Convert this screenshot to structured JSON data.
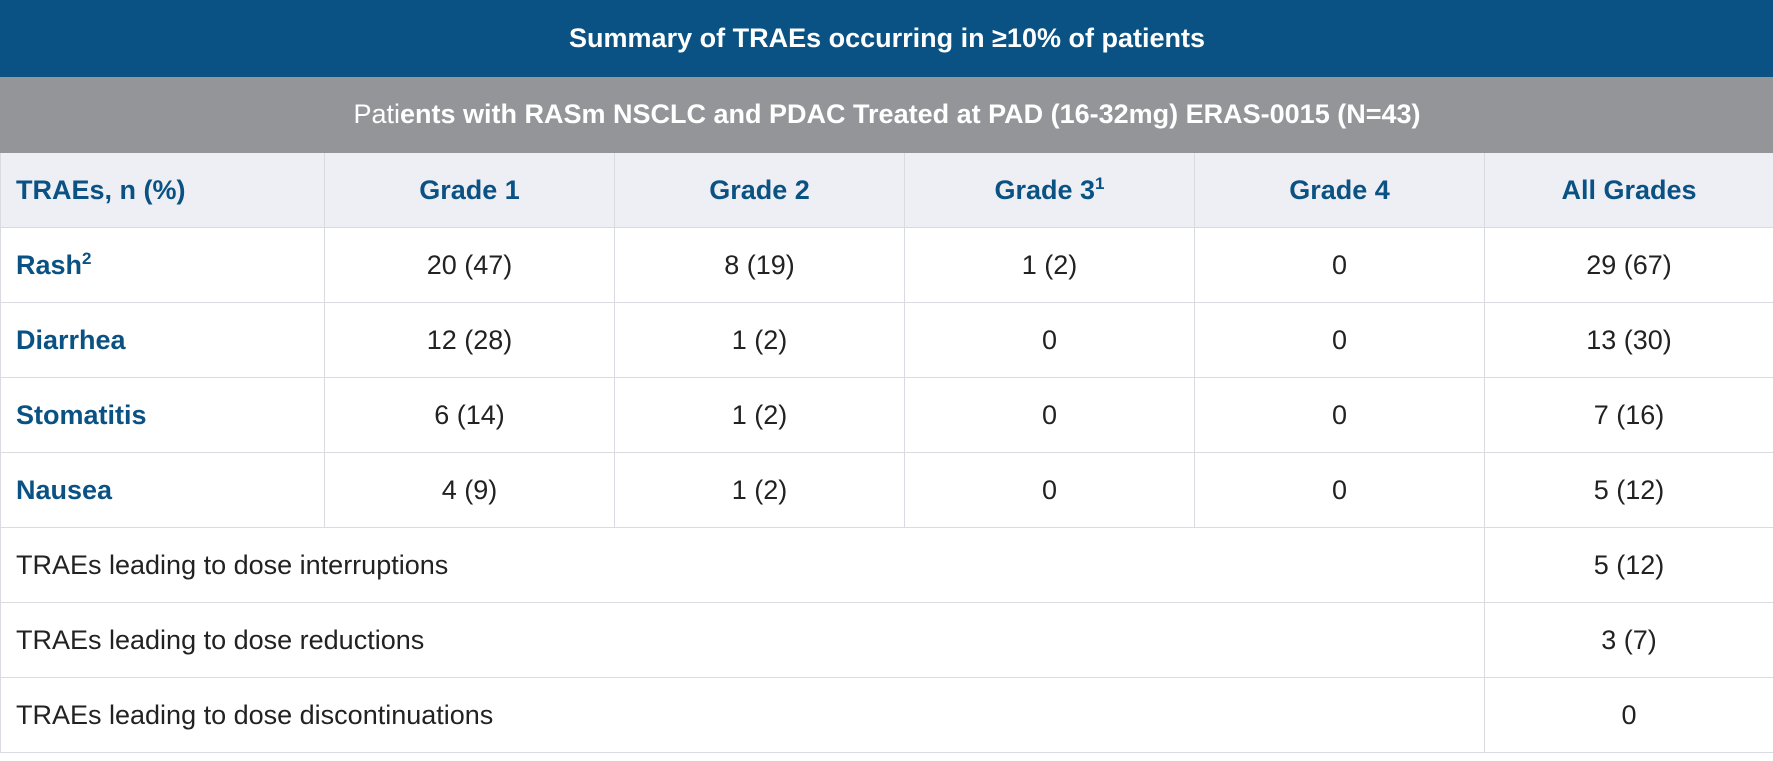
{
  "table": {
    "title": "Summary of TRAEs occurring in ≥10% of patients",
    "subtitle_prefix": "Pati",
    "subtitle_rest": "ents with RASm NSCLC and PDAC Treated at PAD (16-32mg) ERAS-0015 (N=43)",
    "headers": [
      {
        "label": "TRAEs, n (%)",
        "sup": ""
      },
      {
        "label": "Grade 1",
        "sup": ""
      },
      {
        "label": "Grade 2",
        "sup": ""
      },
      {
        "label": "Grade 3",
        "sup": "1"
      },
      {
        "label": "Grade 4",
        "sup": ""
      },
      {
        "label": "All Grades",
        "sup": ""
      }
    ],
    "rows": [
      {
        "name": "Rash",
        "sup": "2",
        "cells": [
          "20 (47)",
          "8 (19)",
          "1 (2)",
          "0",
          "29 (67)"
        ]
      },
      {
        "name": "Diarrhea",
        "sup": "",
        "cells": [
          "12 (28)",
          "1 (2)",
          "0",
          "0",
          "13 (30)"
        ]
      },
      {
        "name": "Stomatitis",
        "sup": "",
        "cells": [
          "6 (14)",
          "1 (2)",
          "0",
          "0",
          "7 (16)"
        ]
      },
      {
        "name": "Nausea",
        "sup": "",
        "cells": [
          "4 (9)",
          "1 (2)",
          "0",
          "0",
          "5 (12)"
        ]
      }
    ],
    "summary_rows": [
      {
        "label": "TRAEs leading to dose interruptions",
        "value": "5 (12)"
      },
      {
        "label": "TRAEs leading to dose reductions",
        "value": "3 (7)"
      },
      {
        "label": "TRAEs leading to dose discontinuations",
        "value": "0"
      }
    ]
  },
  "colors": {
    "title_bg": "#0a5283",
    "subtitle_bg": "#939598",
    "header_bg": "#eeeff4",
    "accent_text": "#0a5283"
  }
}
